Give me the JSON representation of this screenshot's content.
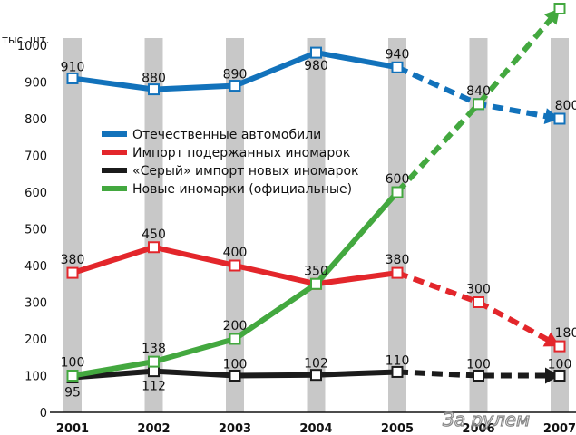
{
  "chart_data": {
    "type": "line",
    "y_unit": "тыс. шт.",
    "categories": [
      "2001",
      "2002",
      "2003",
      "2004",
      "2005",
      "2006",
      "2007"
    ],
    "ylim": [
      0,
      1000
    ],
    "yticks": [
      0,
      100,
      200,
      300,
      400,
      500,
      600,
      700,
      800,
      900,
      1000
    ],
    "grid": "vertical-bars",
    "legend_position": "center-left",
    "solid_until": "2005",
    "series": [
      {
        "name": "Отечественные автомобили",
        "color": "#1272bb",
        "values": [
          910,
          880,
          890,
          980,
          940,
          840,
          800
        ],
        "labels": [
          "910",
          "880",
          "890",
          "980",
          "940",
          "840",
          "800"
        ]
      },
      {
        "name": "Импорт подержанных иномарок",
        "color": "#e3262b",
        "values": [
          380,
          450,
          400,
          350,
          380,
          300,
          180
        ],
        "labels": [
          "380",
          "450",
          "400",
          "350",
          "380",
          "300",
          "180"
        ]
      },
      {
        "name": "«Серый» импорт новых иномарок",
        "color": "#1b1b1b",
        "values": [
          95,
          112,
          100,
          102,
          110,
          100,
          100
        ],
        "labels": [
          "95",
          "112",
          "100",
          "102",
          "110",
          "100",
          "100"
        ]
      },
      {
        "name": "Новые иномарки (официальные)",
        "color": "#43a83f",
        "values": [
          100,
          138,
          200,
          350,
          600,
          840,
          1100
        ],
        "labels": [
          "100",
          "138",
          "200",
          "",
          "600",
          "",
          "1100"
        ]
      }
    ]
  },
  "watermark": "За рулем"
}
